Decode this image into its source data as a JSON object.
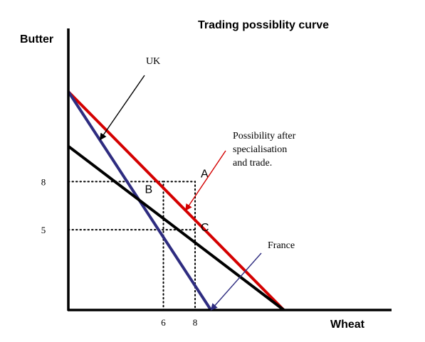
{
  "chart_data": {
    "type": "line",
    "title": "Trading possiblity curve",
    "xlabel": "Wheat",
    "ylabel": "Butter",
    "x_ticks": [
      {
        "value": 6,
        "label": "6"
      },
      {
        "value": 8,
        "label": "8"
      }
    ],
    "y_ticks": [
      {
        "value": 8,
        "label": "8"
      },
      {
        "value": 5,
        "label": "5"
      }
    ],
    "series": [
      {
        "key": "red",
        "color": "#d40000",
        "points": [
          [
            0,
            13.6
          ],
          [
            13.6,
            0
          ]
        ]
      },
      {
        "key": "blue",
        "color": "#2e2c80",
        "points": [
          [
            0,
            13.6
          ],
          [
            9,
            0
          ]
        ]
      },
      {
        "key": "black",
        "color": "#000000",
        "points": [
          [
            0,
            10.2
          ],
          [
            13.6,
            0
          ]
        ]
      }
    ],
    "guides": [
      {
        "points": [
          [
            0,
            8
          ],
          [
            6,
            8
          ],
          [
            6,
            0
          ]
        ]
      },
      {
        "points": [
          [
            6,
            8
          ],
          [
            8,
            8
          ],
          [
            8,
            0
          ]
        ]
      },
      {
        "points": [
          [
            0,
            5
          ],
          [
            8,
            5
          ]
        ]
      }
    ],
    "points": [
      {
        "key": "A",
        "label": "A",
        "x": 8,
        "y": 8
      },
      {
        "key": "B",
        "label": "B",
        "x": 6,
        "y": 8
      },
      {
        "key": "C",
        "label": "C",
        "x": 8,
        "y": 5
      }
    ],
    "annotations": [
      {
        "key": "uk",
        "lines": [
          "UK"
        ],
        "target": "blue",
        "target_xy": [
          2,
          10.6
        ]
      },
      {
        "key": "trade",
        "lines": [
          "Possibility after",
          "specialisation",
          "and trade."
        ],
        "target": "red",
        "target_xy": [
          7.4,
          6.2
        ]
      },
      {
        "key": "france",
        "lines": [
          "France"
        ],
        "target": "blue",
        "target_xy": [
          9,
          0
        ]
      }
    ],
    "xlim": [
      0,
      20.4
    ],
    "ylim": [
      0,
      18.2
    ],
    "grid": false,
    "legend": "none"
  }
}
